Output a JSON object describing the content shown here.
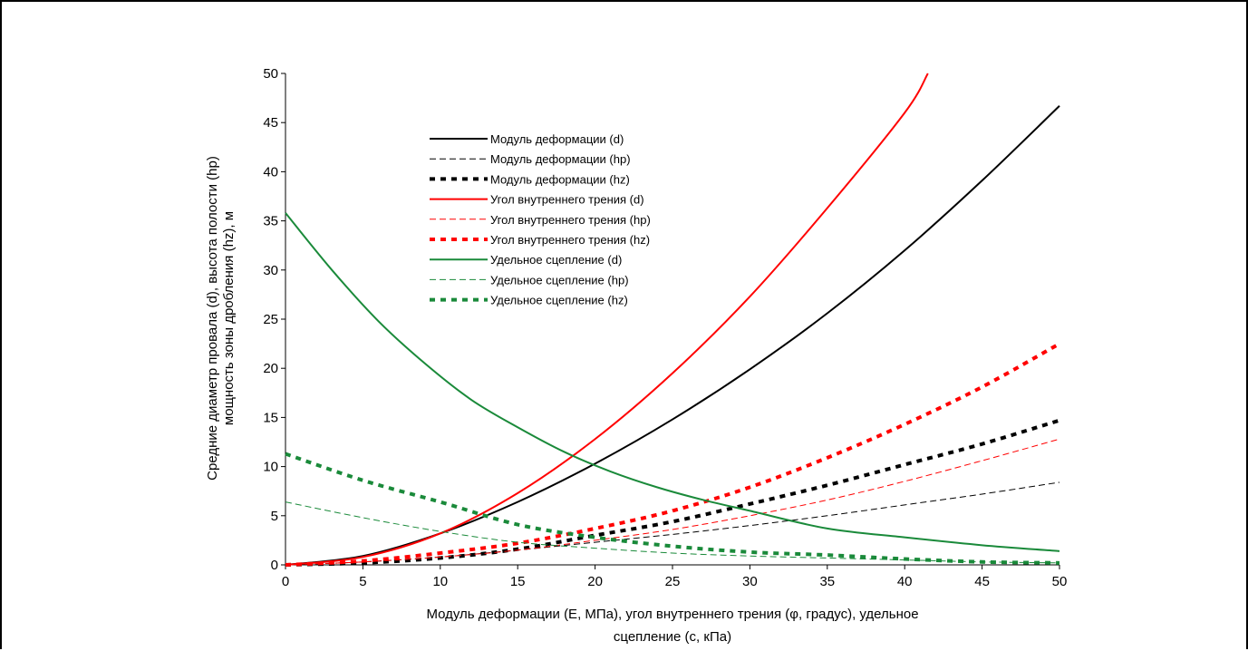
{
  "chart_data": {
    "type": "line",
    "title": "",
    "xlabel_lines": [
      "Модуль деформации (E, МПа), угол внутреннего трения (φ, градус), удельное",
      "сцепление (с, кПа)"
    ],
    "ylabel_lines": [
      "Средние диаметр провала (d), высота полости (hp)",
      "мощность зоны дробления (hz), м"
    ],
    "xlim": [
      0,
      50
    ],
    "ylim": [
      0,
      50
    ],
    "xticks": [
      0,
      5,
      10,
      15,
      20,
      25,
      30,
      35,
      40,
      45,
      50
    ],
    "yticks": [
      0,
      5,
      10,
      15,
      20,
      25,
      30,
      35,
      40,
      45,
      50
    ],
    "grid": false,
    "legend_position": "top-left-inside",
    "series": [
      {
        "name": "Модуль деформации (d)",
        "color": "#000000",
        "style": "solid",
        "x": [
          0,
          5,
          10,
          15,
          20,
          25,
          30,
          35,
          40,
          45,
          50
        ],
        "y": [
          0,
          0.9,
          3.2,
          6.4,
          10.3,
          14.8,
          19.9,
          25.6,
          32.0,
          39.1,
          46.7
        ]
      },
      {
        "name": "Модуль деформации (hp)",
        "color": "#000000",
        "style": "dash",
        "x": [
          0,
          5,
          10,
          15,
          20,
          25,
          30,
          35,
          40,
          45,
          50
        ],
        "y": [
          0,
          0.3,
          0.8,
          1.5,
          2.3,
          3.1,
          4.0,
          5.0,
          6.1,
          7.2,
          8.4
        ]
      },
      {
        "name": "Модуль деформации (hz)",
        "color": "#000000",
        "style": "dot",
        "x": [
          0,
          5,
          10,
          15,
          20,
          25,
          30,
          35,
          40,
          45,
          50
        ],
        "y": [
          0,
          0.2,
          0.7,
          1.6,
          3.0,
          4.4,
          6.2,
          8.1,
          10.2,
          12.3,
          14.7
        ]
      },
      {
        "name": "Угол внутреннего трения (d)",
        "color": "#ff0000",
        "style": "solid",
        "x": [
          0,
          5,
          10,
          15,
          20,
          25,
          30,
          35,
          40,
          41.5
        ],
        "y": [
          0,
          0.8,
          3.2,
          7.3,
          12.8,
          19.5,
          27.3,
          36.3,
          46.0,
          50
        ]
      },
      {
        "name": "Угол внутреннего трения (hp)",
        "color": "#ff0000",
        "style": "dash",
        "x": [
          0,
          5,
          10,
          15,
          20,
          25,
          30,
          35,
          40,
          45,
          50
        ],
        "y": [
          0,
          0.3,
          0.8,
          1.5,
          2.5,
          3.6,
          5.0,
          6.6,
          8.5,
          10.6,
          12.8
        ]
      },
      {
        "name": "Угол внутреннего трения (hz)",
        "color": "#ff0000",
        "style": "dot",
        "x": [
          0,
          5,
          10,
          15,
          20,
          25,
          30,
          35,
          40,
          45,
          50
        ],
        "y": [
          0,
          0.4,
          1.2,
          2.2,
          3.7,
          5.5,
          7.9,
          10.9,
          14.3,
          18.1,
          22.5
        ]
      },
      {
        "name": "Удельное сцепление (d)",
        "color": "#1a8a3a",
        "style": "solid",
        "x": [
          0,
          3,
          6,
          9,
          12,
          15,
          18,
          21,
          24,
          27,
          30,
          35,
          40,
          45,
          50
        ],
        "y": [
          35.8,
          30.0,
          24.8,
          20.5,
          16.8,
          14.0,
          11.5,
          9.5,
          7.9,
          6.6,
          5.5,
          3.7,
          2.8,
          2.0,
          1.4
        ]
      },
      {
        "name": "Удельное сцепление (hp)",
        "color": "#1a8a3a",
        "style": "dash",
        "x": [
          0,
          5,
          10,
          15,
          20,
          25,
          30,
          35,
          40,
          45,
          50
        ],
        "y": [
          6.4,
          4.8,
          3.4,
          2.3,
          1.7,
          1.2,
          0.9,
          0.7,
          0.5,
          0.3,
          0.2
        ]
      },
      {
        "name": "Удельное сцепление (hz)",
        "color": "#1a8a3a",
        "style": "dot",
        "x": [
          0,
          5,
          10,
          15,
          20,
          25,
          30,
          35,
          40,
          45,
          50
        ],
        "y": [
          11.3,
          8.6,
          6.4,
          4.1,
          2.8,
          1.9,
          1.3,
          1.0,
          0.6,
          0.3,
          0.2
        ]
      }
    ]
  }
}
